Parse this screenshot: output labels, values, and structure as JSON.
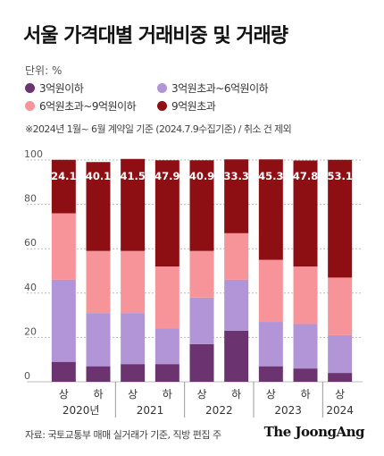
{
  "title": "서울 가격대별 거래비중 및 거래량",
  "unit": "단위: %",
  "note": "※2024년 1월~ 6월 계약일 기준 (2024.7.9수집기준) / 취소 건 제외",
  "source": "자료: 국토교통부 매매 실거래가 기준, 직방 편집 주",
  "brand": "The JoongAng",
  "colors": {
    "under3": "#6b3470",
    "3to6": "#b295d6",
    "6to9": "#f79499",
    "over9": "#8e0f13",
    "grid": "#bbbbbb"
  },
  "legend": [
    {
      "label": "3억원이하",
      "color": "#6b3470"
    },
    {
      "label": "3억원초과~6억원이하",
      "color": "#b295d6"
    },
    {
      "label": "6억원초과~9억원이하",
      "color": "#f79499"
    },
    {
      "label": "9억원초과",
      "color": "#8e0f13"
    }
  ],
  "chart_data": {
    "type": "bar",
    "stacked": true,
    "categories": [
      "상",
      "하",
      "상",
      "하",
      "상",
      "하",
      "상",
      "하",
      "상"
    ],
    "groups": [
      {
        "label": "2020년",
        "span": 2
      },
      {
        "label": "2021",
        "span": 2
      },
      {
        "label": "2022",
        "span": 2
      },
      {
        "label": "2023",
        "span": 2
      },
      {
        "label": "2024",
        "span": 1
      }
    ],
    "series": [
      {
        "name": "3억원이하",
        "color": "#6b3470",
        "values": [
          9,
          7,
          8,
          8,
          17,
          23,
          7,
          6,
          4
        ]
      },
      {
        "name": "3억원초과~6억원이하",
        "color": "#b295d6",
        "values": [
          37,
          24,
          23,
          16,
          21,
          23,
          20,
          20,
          17
        ]
      },
      {
        "name": "6억원초과~9억원이하",
        "color": "#f79499",
        "values": [
          30,
          28,
          28,
          28,
          21,
          21,
          28,
          26,
          26
        ]
      },
      {
        "name": "9억원초과",
        "color": "#8e0f13",
        "values": [
          24.1,
          40.1,
          41.5,
          47.9,
          40.9,
          33.3,
          45.3,
          47.8,
          53.1
        ]
      }
    ],
    "data_labels": [
      "24.1",
      "40.1",
      "41.5",
      "47.9",
      "40.9",
      "33.3",
      "45.3",
      "47.8",
      "53.1"
    ],
    "yticks": [
      0,
      20,
      40,
      60,
      80,
      100
    ],
    "ylim": [
      0,
      100
    ],
    "grid": true
  }
}
